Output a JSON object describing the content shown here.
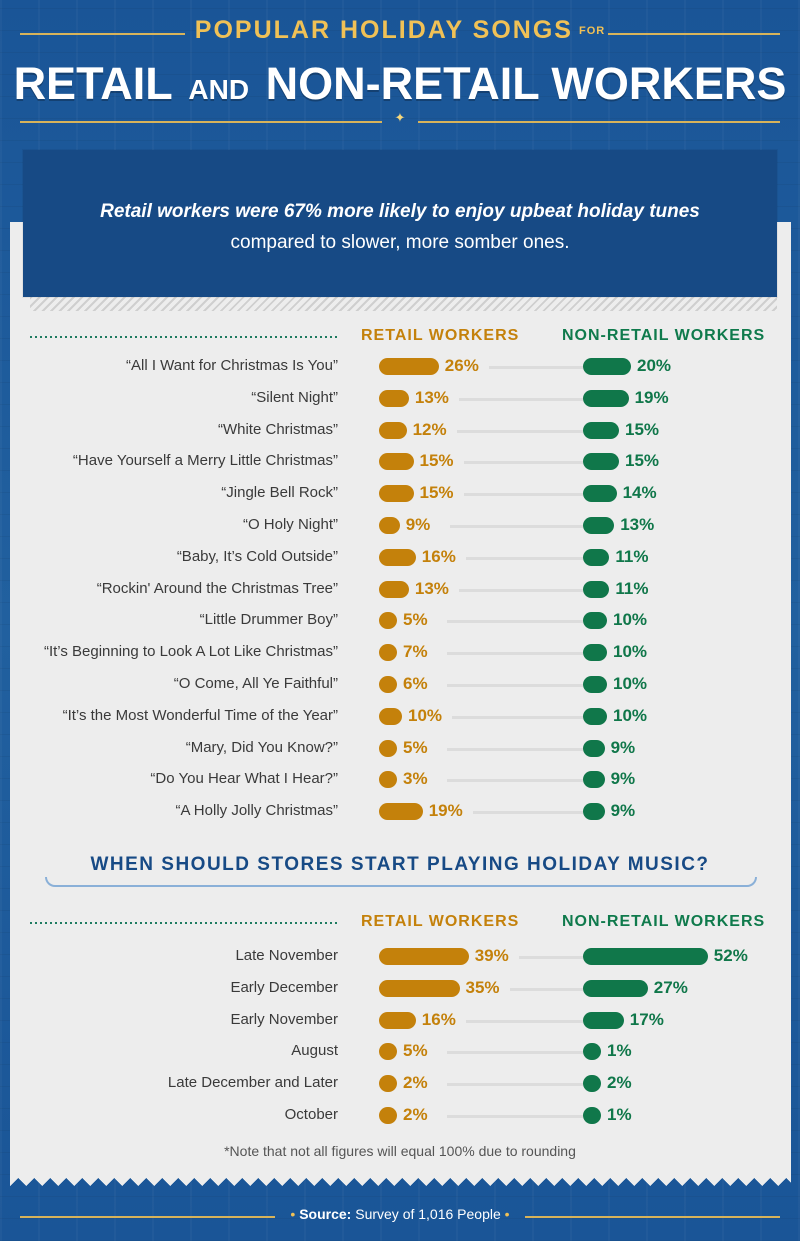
{
  "header": {
    "subtitle": "POPULAR HOLIDAY SONGS",
    "subtitle_for": "FOR",
    "title_a": "RETAIL",
    "title_and": "AND",
    "title_b": "NON-RETAIL WORKERS"
  },
  "callout": {
    "bold": "Retail workers were 67% more likely to enjoy upbeat holiday tunes",
    "rest": " compared to slower, more somber ones."
  },
  "colors": {
    "retail": "#c4810b",
    "non_retail": "#10774a",
    "title_blue": "#174a85"
  },
  "chart_data": [
    {
      "type": "bar",
      "orientation": "horizontal",
      "series_labels": {
        "retail": "RETAIL WORKERS",
        "non_retail": "NON-RETAIL WORKERS"
      },
      "categories": [
        "“All I Want for Christmas Is You”",
        "“Silent Night”",
        "“White Christmas”",
        "“Have Yourself a Merry Little Christmas”",
        "“Jingle Bell Rock”",
        "“O Holy Night”",
        "“Baby, It’s Cold Outside”",
        "“Rockin' Around the Christmas Tree”",
        "“Little Drummer Boy”",
        "“It’s Beginning to Look A Lot Like Christmas”",
        "“O Come, All Ye Faithful”",
        "“It’s the Most Wonderful Time of the Year”",
        "“Mary, Did You Know?”",
        "“Do You Hear What I Hear?”",
        "“A Holly Jolly Christmas”"
      ],
      "series": [
        {
          "name": "RETAIL WORKERS",
          "values": [
            26,
            13,
            12,
            15,
            15,
            9,
            16,
            13,
            5,
            7,
            6,
            10,
            5,
            3,
            19
          ]
        },
        {
          "name": "NON-RETAIL WORKERS",
          "values": [
            20,
            19,
            15,
            15,
            14,
            13,
            11,
            11,
            10,
            10,
            10,
            10,
            9,
            9,
            9
          ]
        }
      ],
      "unit": "%"
    },
    {
      "type": "bar",
      "orientation": "horizontal",
      "title": "WHEN SHOULD STORES START PLAYING HOLIDAY MUSIC?",
      "series_labels": {
        "retail": "RETAIL WORKERS",
        "non_retail": "NON-RETAIL WORKERS"
      },
      "categories": [
        "Late November",
        "Early December",
        "Early November",
        "August",
        "Late December and Later",
        "October"
      ],
      "series": [
        {
          "name": "RETAIL WORKERS",
          "values": [
            39,
            35,
            16,
            5,
            2,
            2
          ]
        },
        {
          "name": "NON-RETAIL WORKERS",
          "values": [
            52,
            27,
            17,
            1,
            2,
            1
          ]
        }
      ],
      "unit": "%"
    }
  ],
  "note": "*Note that not all figures will equal 100% due to rounding",
  "footer": {
    "source_label": "Source:",
    "source_text": " Survey of 1,016 People"
  }
}
